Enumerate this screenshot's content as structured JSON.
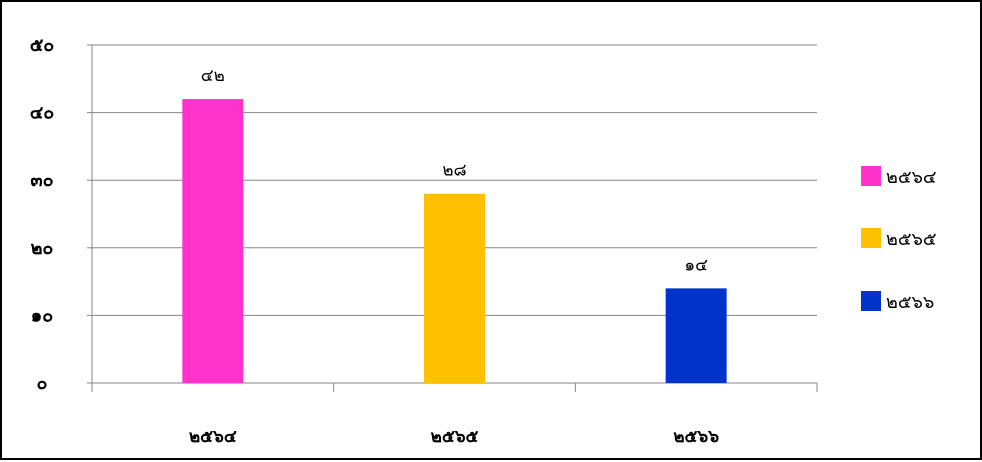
{
  "chart_data": {
    "type": "bar",
    "categories": [
      "๒๕๖๔",
      "๒๕๖๕",
      "๒๕๖๖"
    ],
    "values": [
      42,
      28,
      14
    ],
    "value_labels": [
      "๔๒",
      "๒๘",
      "๑๔"
    ],
    "colors": [
      "#ff33cc",
      "#ffc000",
      "#0033cc"
    ],
    "legend": [
      "๒๕๖๔",
      "๒๕๖๕",
      "๒๕๖๖"
    ],
    "legend_position": "right",
    "ylim": [
      0,
      50
    ],
    "yticks": [
      0,
      10,
      20,
      30,
      40,
      50
    ],
    "ytick_labels": [
      "๐",
      "๑๐",
      "๒๐",
      "๓๐",
      "๔๐",
      "๕๐"
    ],
    "grid": true
  }
}
